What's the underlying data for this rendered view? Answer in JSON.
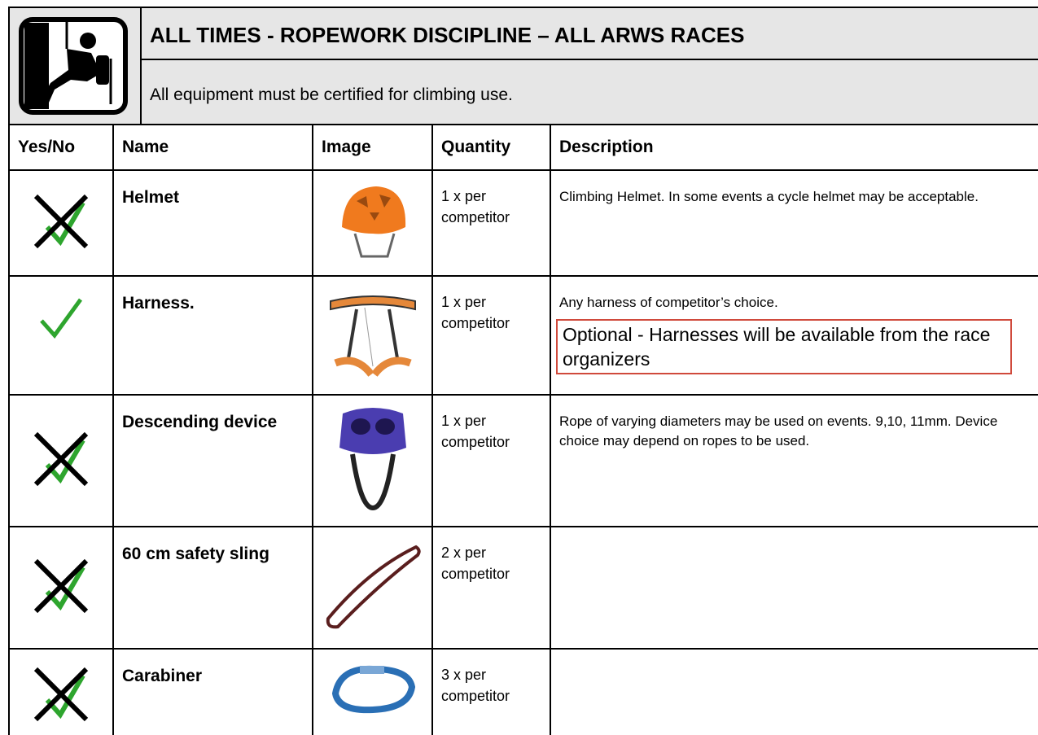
{
  "header": {
    "title": "ALL TIMES - ROPEWORK DISCIPLINE – ALL ARWS RACES",
    "subtitle": "All equipment must be certified for climbing use."
  },
  "table": {
    "columns": [
      "Yes/No",
      "Name",
      "Image",
      "Quantity",
      "Description"
    ],
    "rows": [
      {
        "name": "Helmet",
        "quantity": "1 x per competitor",
        "description": "Climbing Helmet. In some events a cycle helmet may be acceptable."
      },
      {
        "name": "Harness.",
        "quantity": "1 x per competitor",
        "description": "Any harness of competitor’s choice.",
        "note": "Optional - Harnesses will be available from the race organizers"
      },
      {
        "name": "Descending device",
        "quantity": "1 x per competitor",
        "description": "Rope of varying diameters may be used on events. 9,10, 11mm. Device choice may depend on ropes to be used."
      },
      {
        "name": "60 cm safety sling",
        "quantity": "2 x per competitor"
      },
      {
        "name": "Carabiner",
        "quantity": "3 x per competitor"
      }
    ]
  }
}
